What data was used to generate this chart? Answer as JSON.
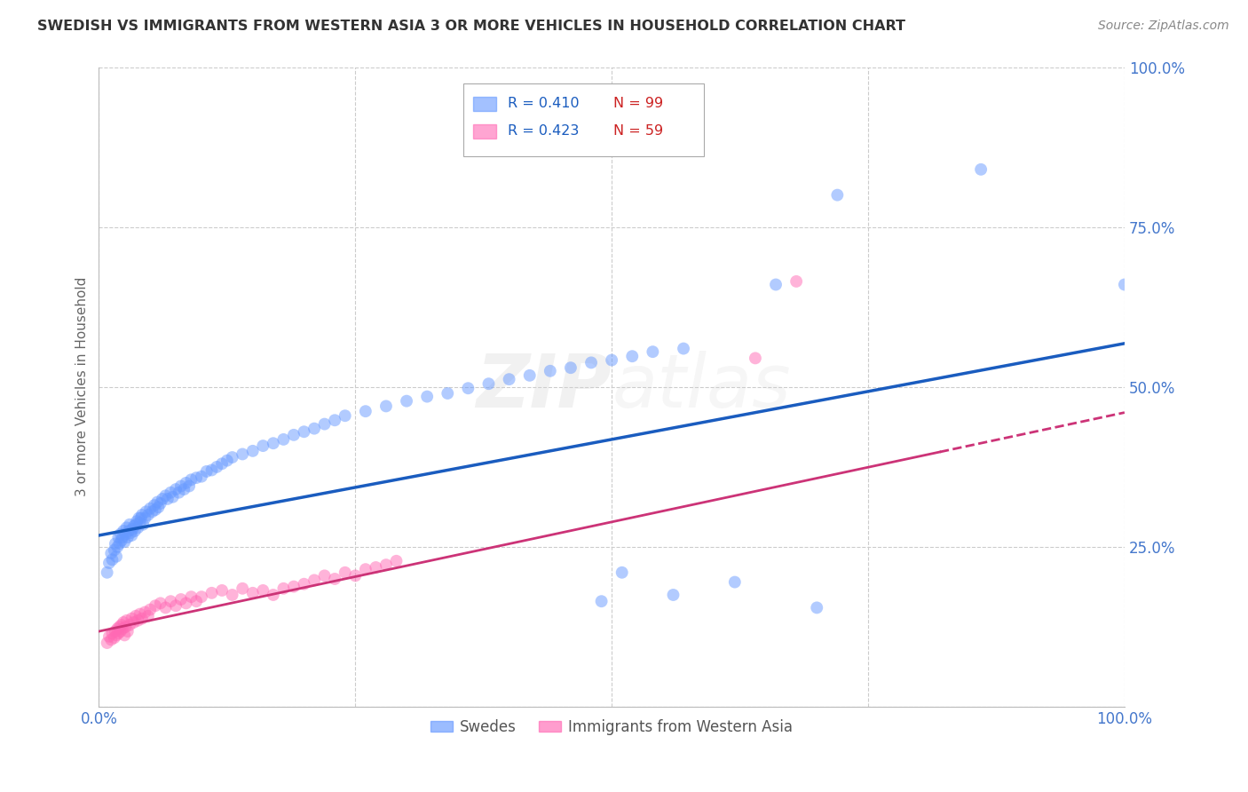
{
  "title": "SWEDISH VS IMMIGRANTS FROM WESTERN ASIA 3 OR MORE VEHICLES IN HOUSEHOLD CORRELATION CHART",
  "source_text": "Source: ZipAtlas.com",
  "ylabel": "3 or more Vehicles in Household",
  "xlim": [
    0.0,
    1.0
  ],
  "ylim": [
    0.0,
    1.0
  ],
  "xticks": [
    0.0,
    0.25,
    0.5,
    0.75,
    1.0
  ],
  "xticklabels": [
    "0.0%",
    "",
    "",
    "",
    "100.0%"
  ],
  "yticks": [
    0.0,
    0.25,
    0.5,
    0.75,
    1.0
  ],
  "yticklabels": [
    "",
    "25.0%",
    "50.0%",
    "75.0%",
    "100.0%"
  ],
  "legend_labels": [
    "Swedes",
    "Immigrants from Western Asia"
  ],
  "legend_r_blue": "R = 0.410",
  "legend_n_blue": "N = 99",
  "legend_r_pink": "R = 0.423",
  "legend_n_pink": "N = 59",
  "blue_color": "#6699FF",
  "pink_color": "#FF69B4",
  "regression_blue_color": "#1a5cbf",
  "regression_pink_color": "#cc3377",
  "watermark_zip": "ZIP",
  "watermark_atlas": "atlas",
  "background_color": "#ffffff",
  "grid_color": "#cccccc",
  "axis_color": "#4477cc",
  "blue_scatter_x": [
    0.008,
    0.01,
    0.012,
    0.013,
    0.015,
    0.016,
    0.017,
    0.018,
    0.019,
    0.02,
    0.021,
    0.022,
    0.023,
    0.024,
    0.025,
    0.026,
    0.027,
    0.028,
    0.029,
    0.03,
    0.031,
    0.032,
    0.033,
    0.034,
    0.035,
    0.036,
    0.037,
    0.038,
    0.039,
    0.04,
    0.041,
    0.042,
    0.043,
    0.045,
    0.046,
    0.048,
    0.05,
    0.052,
    0.054,
    0.055,
    0.057,
    0.058,
    0.06,
    0.062,
    0.065,
    0.067,
    0.07,
    0.072,
    0.075,
    0.078,
    0.08,
    0.083,
    0.085,
    0.088,
    0.09,
    0.095,
    0.1,
    0.105,
    0.11,
    0.115,
    0.12,
    0.125,
    0.13,
    0.14,
    0.15,
    0.16,
    0.17,
    0.18,
    0.19,
    0.2,
    0.21,
    0.22,
    0.23,
    0.24,
    0.26,
    0.28,
    0.3,
    0.32,
    0.34,
    0.36,
    0.38,
    0.4,
    0.42,
    0.44,
    0.46,
    0.48,
    0.5,
    0.52,
    0.54,
    0.57,
    0.49,
    0.51,
    0.56,
    0.62,
    0.66,
    0.7,
    0.72,
    0.86,
    1.0
  ],
  "blue_scatter_y": [
    0.21,
    0.225,
    0.24,
    0.23,
    0.245,
    0.255,
    0.235,
    0.25,
    0.265,
    0.255,
    0.27,
    0.26,
    0.265,
    0.275,
    0.258,
    0.27,
    0.28,
    0.265,
    0.275,
    0.285,
    0.272,
    0.268,
    0.278,
    0.282,
    0.275,
    0.285,
    0.29,
    0.28,
    0.295,
    0.288,
    0.295,
    0.3,
    0.285,
    0.295,
    0.305,
    0.3,
    0.31,
    0.305,
    0.315,
    0.308,
    0.32,
    0.312,
    0.318,
    0.325,
    0.33,
    0.325,
    0.335,
    0.328,
    0.34,
    0.335,
    0.345,
    0.34,
    0.35,
    0.345,
    0.355,
    0.358,
    0.36,
    0.368,
    0.37,
    0.375,
    0.38,
    0.385,
    0.39,
    0.395,
    0.4,
    0.408,
    0.412,
    0.418,
    0.425,
    0.43,
    0.435,
    0.442,
    0.448,
    0.455,
    0.462,
    0.47,
    0.478,
    0.485,
    0.49,
    0.498,
    0.505,
    0.512,
    0.518,
    0.525,
    0.53,
    0.538,
    0.542,
    0.548,
    0.555,
    0.56,
    0.165,
    0.21,
    0.175,
    0.195,
    0.66,
    0.155,
    0.8,
    0.84,
    0.66
  ],
  "pink_scatter_x": [
    0.008,
    0.01,
    0.012,
    0.013,
    0.015,
    0.016,
    0.017,
    0.018,
    0.019,
    0.02,
    0.021,
    0.022,
    0.023,
    0.024,
    0.025,
    0.026,
    0.027,
    0.028,
    0.03,
    0.032,
    0.034,
    0.036,
    0.038,
    0.04,
    0.042,
    0.045,
    0.048,
    0.05,
    0.055,
    0.06,
    0.065,
    0.07,
    0.075,
    0.08,
    0.085,
    0.09,
    0.095,
    0.1,
    0.11,
    0.12,
    0.13,
    0.14,
    0.15,
    0.16,
    0.17,
    0.18,
    0.19,
    0.2,
    0.21,
    0.22,
    0.23,
    0.24,
    0.25,
    0.26,
    0.27,
    0.28,
    0.29,
    0.64,
    0.68
  ],
  "pink_scatter_y": [
    0.1,
    0.11,
    0.105,
    0.115,
    0.108,
    0.118,
    0.112,
    0.122,
    0.115,
    0.125,
    0.118,
    0.128,
    0.122,
    0.132,
    0.112,
    0.125,
    0.135,
    0.118,
    0.128,
    0.138,
    0.132,
    0.142,
    0.135,
    0.145,
    0.138,
    0.148,
    0.142,
    0.152,
    0.158,
    0.162,
    0.155,
    0.165,
    0.158,
    0.168,
    0.162,
    0.172,
    0.165,
    0.172,
    0.178,
    0.182,
    0.175,
    0.185,
    0.178,
    0.182,
    0.175,
    0.185,
    0.188,
    0.192,
    0.198,
    0.205,
    0.2,
    0.21,
    0.205,
    0.215,
    0.218,
    0.222,
    0.228,
    0.545,
    0.665
  ],
  "regression_blue_x0": 0.0,
  "regression_blue_x1": 1.0,
  "regression_blue_y0": 0.268,
  "regression_blue_y1": 0.568,
  "regression_pink_x0": 0.0,
  "regression_pink_x1": 1.0,
  "regression_pink_y0": 0.118,
  "regression_pink_y1": 0.46,
  "regression_pink_solid_end": 0.82
}
